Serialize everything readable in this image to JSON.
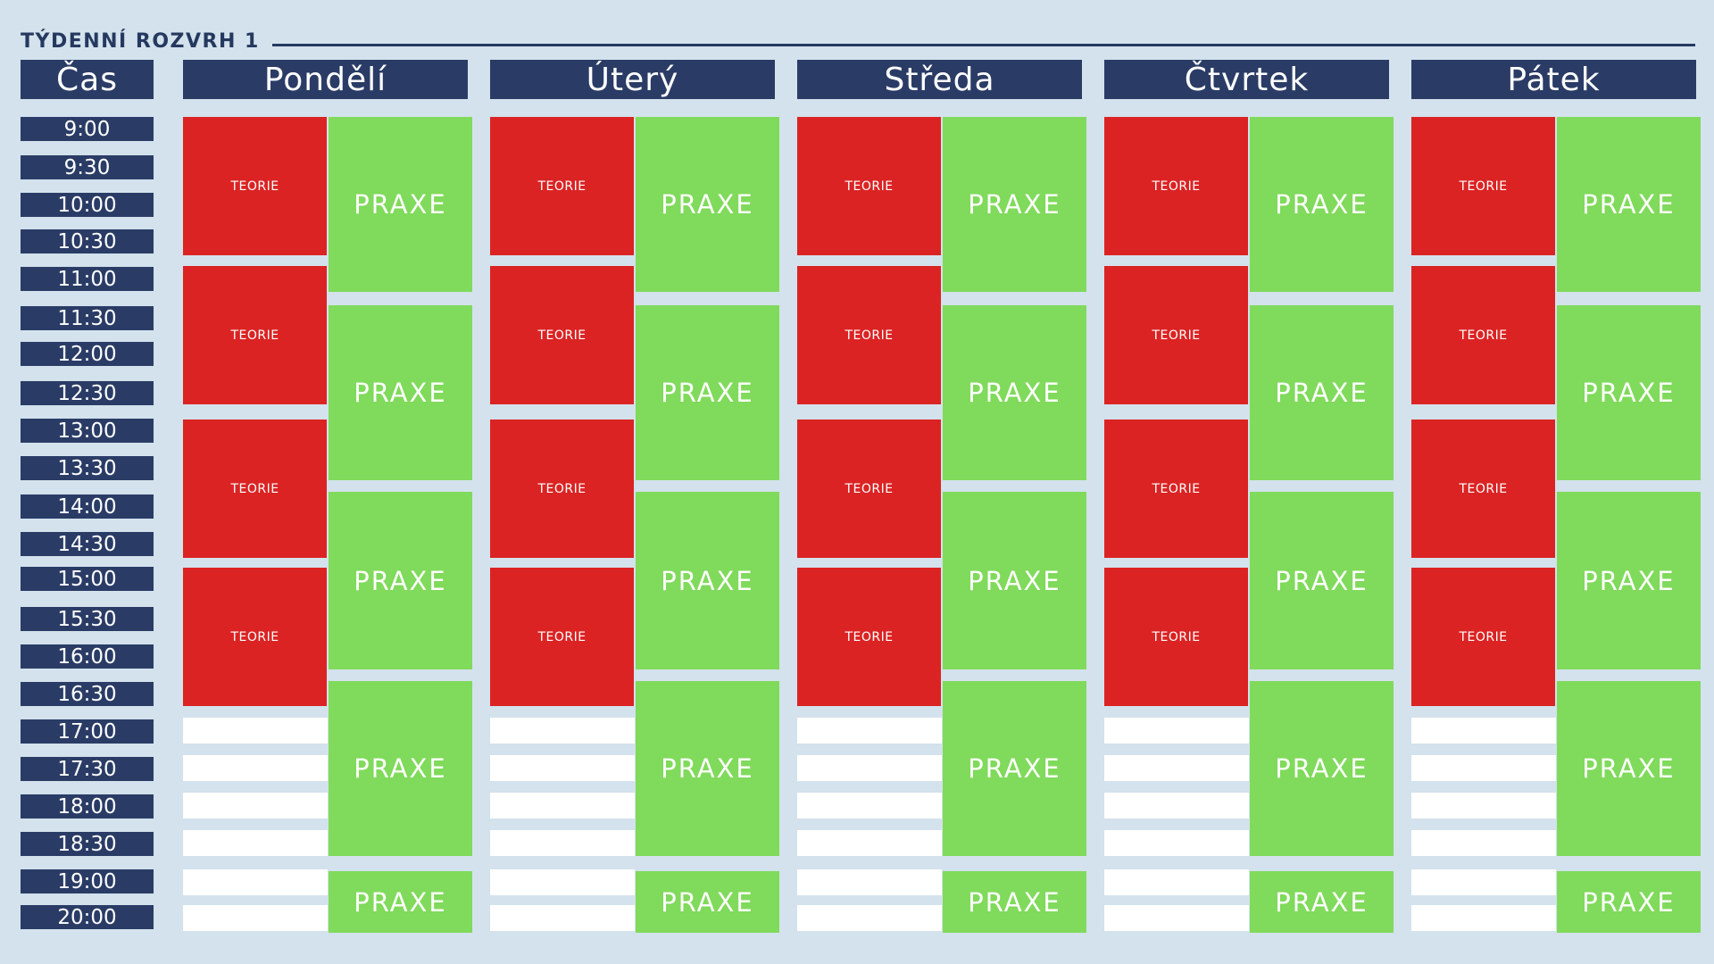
{
  "title": "TÝDENNÍ ROZVRH 1",
  "time_header": "Čas",
  "times": [
    "9:00",
    "9:30",
    "10:00",
    "10:30",
    "11:00",
    "11:30",
    "12:00",
    "12:30",
    "13:00",
    "13:30",
    "14:00",
    "14:30",
    "15:00",
    "15:30",
    "16:00",
    "16:30",
    "17:00",
    "17:30",
    "18:00",
    "18:30",
    "19:00",
    "20:00"
  ],
  "days": [
    {
      "name": "Pondělí",
      "theory_label": "TEORIE",
      "practice_label": "PRAXE",
      "theory_blocks": 4,
      "practice_blocks": 5
    },
    {
      "name": "Úterý",
      "theory_label": "TEORIE",
      "practice_label": "PRAXE",
      "theory_blocks": 4,
      "practice_blocks": 5
    },
    {
      "name": "Středa",
      "theory_label": "TEORIE",
      "practice_label": "PRAXE",
      "theory_blocks": 4,
      "practice_blocks": 5
    },
    {
      "name": "Čtvrtek",
      "theory_label": "TEORIE",
      "practice_label": "PRAXE",
      "theory_blocks": 4,
      "practice_blocks": 5
    },
    {
      "name": "Pátek",
      "theory_label": "TEORIE",
      "practice_label": "PRAXE",
      "theory_blocks": 4,
      "practice_blocks": 5
    }
  ],
  "colors": {
    "background": "#d3e2ec",
    "header": "#2a3c66",
    "theory": "#db2323",
    "practice": "#80da5b",
    "empty": "#ffffff"
  }
}
